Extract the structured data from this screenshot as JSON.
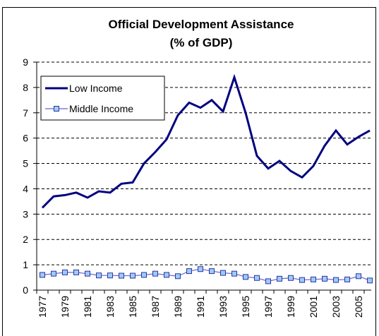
{
  "chart_data": {
    "type": "line",
    "title": "Official Development Assistance",
    "subtitle": "(% of GDP)",
    "categories": [
      "1977",
      null,
      "1979",
      null,
      "1981",
      null,
      "1983",
      null,
      "1985",
      null,
      "1987",
      null,
      "1989",
      null,
      "1991",
      null,
      "1993",
      null,
      "1995",
      null,
      "1997",
      null,
      "1999",
      null,
      "2001",
      null,
      "2003",
      null,
      "2005",
      null
    ],
    "series": [
      {
        "name": "Low Income",
        "color": "#000080",
        "marker": "none",
        "values": [
          3.25,
          3.7,
          3.75,
          3.85,
          3.65,
          3.9,
          3.85,
          4.2,
          4.25,
          5.0,
          5.45,
          5.95,
          6.9,
          7.4,
          7.2,
          7.5,
          7.05,
          8.4,
          7.0,
          5.3,
          4.8,
          5.1,
          4.7,
          4.45,
          4.9,
          5.7,
          6.3,
          5.75,
          6.05,
          6.3
        ]
      },
      {
        "name": "Middle Income",
        "color": "#6666cc",
        "marker": "square",
        "marker_color": "#99ccff",
        "values": [
          0.6,
          0.65,
          0.7,
          0.7,
          0.65,
          0.58,
          0.58,
          0.57,
          0.57,
          0.6,
          0.65,
          0.6,
          0.55,
          0.75,
          0.83,
          0.75,
          0.68,
          0.65,
          0.52,
          0.48,
          0.35,
          0.45,
          0.48,
          0.4,
          0.42,
          0.45,
          0.4,
          0.42,
          0.55,
          0.38
        ]
      }
    ],
    "ylim": [
      0,
      9
    ],
    "yticks": [
      0,
      1,
      2,
      3,
      4,
      5,
      6,
      7,
      8,
      9
    ],
    "grid": true,
    "legend": "upper left"
  }
}
